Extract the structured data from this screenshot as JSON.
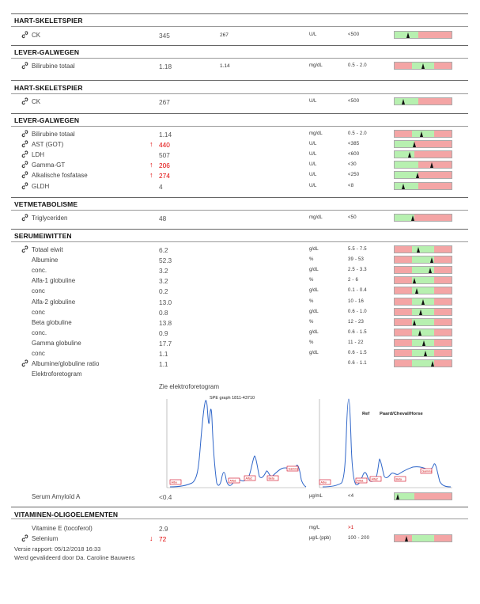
{
  "sections": [
    {
      "title": "HART-SKELETSPIER",
      "rows": [
        {
          "name": "CK",
          "link": true,
          "value": "345",
          "prev": "267",
          "unit": "U/L",
          "ref": "<500",
          "gauge": {
            "low": 0.0,
            "high": 0.42,
            "marker": 0.24
          }
        }
      ]
    },
    {
      "title": "LEVER-GALWEGEN",
      "rows": [
        {
          "name": "Bilirubine totaal",
          "link": true,
          "value": "1.18",
          "prev": "1.14",
          "unit": "mg/dL",
          "ref": "0.5  -  2.0",
          "gauge": {
            "low": 0.3,
            "high": 0.7,
            "marker": 0.5
          }
        }
      ]
    },
    {
      "title": "HART-SKELETSPIER",
      "rows": [
        {
          "name": "CK",
          "link": true,
          "value": "267",
          "unit": "U/L",
          "ref": "<500",
          "gauge": {
            "low": 0.0,
            "high": 0.42,
            "marker": 0.16
          }
        }
      ]
    },
    {
      "title": "LEVER-GALWEGEN",
      "rows": [
        {
          "name": "Bilirubine totaal",
          "link": true,
          "value": "1.14",
          "unit": "mg/dL",
          "ref": "0.5  -  2.0",
          "gauge": {
            "low": 0.3,
            "high": 0.7,
            "marker": 0.48
          }
        },
        {
          "name": "AST (GOT)",
          "link": true,
          "arrow": "up",
          "value": "440",
          "unit": "U/L",
          "ref": "<385",
          "gauge": {
            "low": 0.0,
            "high": 0.35,
            "marker": 0.35
          }
        },
        {
          "name": "LDH",
          "link": true,
          "value": "507",
          "unit": "U/L",
          "ref": "<600",
          "gauge": {
            "low": 0.0,
            "high": 0.35,
            "marker": 0.27
          }
        },
        {
          "name": "Gamma-GT",
          "link": true,
          "arrow": "up",
          "value": "206",
          "unit": "U/L",
          "ref": "<30",
          "gauge": {
            "low": 0.0,
            "high": 0.42,
            "marker": 0.66
          }
        },
        {
          "name": "Alkalische fosfatase",
          "link": true,
          "arrow": "up",
          "value": "274",
          "unit": "U/L",
          "ref": "<250",
          "gauge": {
            "low": 0.0,
            "high": 0.42,
            "marker": 0.41
          }
        },
        {
          "name": "GLDH",
          "link": true,
          "value": "4",
          "unit": "U/L",
          "ref": "<8",
          "gauge": {
            "low": 0.0,
            "high": 0.42,
            "marker": 0.16
          }
        }
      ]
    },
    {
      "title": "VETMETABOLISME",
      "rows": [
        {
          "name": "Triglyceriden",
          "link": true,
          "value": "48",
          "unit": "mg/dL",
          "ref": "<50",
          "gauge": {
            "low": 0.0,
            "high": 0.35,
            "marker": 0.33
          }
        }
      ]
    },
    {
      "title": "SERUMEIWITTEN",
      "rows": [
        {
          "name": "Totaal eiwit",
          "link": true,
          "value": "6.2",
          "unit": "g/dL",
          "ref": "5.5  -  7.5",
          "gauge": {
            "low": 0.3,
            "high": 0.7,
            "marker": 0.42
          }
        },
        {
          "name": "Albumine",
          "value": "52.3",
          "unit": "%",
          "ref": "39  -  53",
          "gauge": {
            "low": 0.3,
            "high": 0.7,
            "marker": 0.66
          }
        },
        {
          "name": "conc.",
          "value": "3.2",
          "unit": "g/dL",
          "ref": "2.5  -  3.3",
          "gauge": {
            "low": 0.3,
            "high": 0.7,
            "marker": 0.63
          }
        },
        {
          "name": "Alfa-1 globuline",
          "value": "3.2",
          "unit": "%",
          "ref": "2  -  6",
          "gauge": {
            "low": 0.3,
            "high": 0.7,
            "marker": 0.36
          }
        },
        {
          "name": "conc",
          "value": "0.2",
          "unit": "g/dL",
          "ref": "0.1  -  0.4",
          "gauge": {
            "low": 0.3,
            "high": 0.7,
            "marker": 0.39
          }
        },
        {
          "name": "Alfa-2 globuline",
          "value": "13.0",
          "unit": "%",
          "ref": "10  -  16",
          "gauge": {
            "low": 0.3,
            "high": 0.7,
            "marker": 0.5
          }
        },
        {
          "name": "conc",
          "value": "0.8",
          "unit": "g/dL",
          "ref": "0.6  -  1.0",
          "gauge": {
            "low": 0.3,
            "high": 0.7,
            "marker": 0.47
          }
        },
        {
          "name": "Beta globuline",
          "value": "13.8",
          "unit": "%",
          "ref": "12  -  23",
          "gauge": {
            "low": 0.3,
            "high": 0.7,
            "marker": 0.36
          }
        },
        {
          "name": "conc.",
          "value": "0.9",
          "unit": "g/dL",
          "ref": "0.6  -  1.5",
          "gauge": {
            "low": 0.3,
            "high": 0.7,
            "marker": 0.45
          }
        },
        {
          "name": "Gamma globuline",
          "value": "17.7",
          "unit": "%",
          "ref": "11  -  22",
          "gauge": {
            "low": 0.3,
            "high": 0.7,
            "marker": 0.52
          }
        },
        {
          "name": "conc",
          "value": "1.1",
          "unit": "g/dL",
          "ref": "0.6  -  1.5",
          "gauge": {
            "low": 0.3,
            "high": 0.7,
            "marker": 0.55
          }
        },
        {
          "name": "Albumine/globuline ratio",
          "link": true,
          "value": "1.1",
          "ref": "0.6  -  1.1",
          "gauge": {
            "low": 0.3,
            "high": 0.7,
            "marker": 0.68
          }
        },
        {
          "name": "Elektroforetogram"
        }
      ]
    }
  ],
  "electro": {
    "caption": "Zie elektroforetogram",
    "graph_title": "SPE graph 1811-43710",
    "ref_label": "Ref",
    "ref_species": "Paard/Cheval/Horse",
    "band_labels_left": [
      "Albu",
      "Alfa1",
      "Alfa2",
      "Beta",
      "Gamma"
    ],
    "band_labels_right": [
      "Albu",
      "Alfa1",
      "Alfa2",
      "Beta",
      "Gamma"
    ]
  },
  "amyloid": {
    "name": "Serum Amyloïd A",
    "value": "<0.4",
    "unit": "µg/mL",
    "ref": "<4",
    "gauge": {
      "low": 0.0,
      "high": 0.35,
      "marker": 0.06
    }
  },
  "vitamins": {
    "title": "VITAMINEN-OLIGOELEMENTEN",
    "rows": [
      {
        "name": "Vitamine E (tocoferol)",
        "value": "2.9",
        "unit": "mg/L",
        "ref": ">1"
      },
      {
        "name": "Selenium",
        "link": true,
        "arrow": "down",
        "value": "72",
        "unit": "µg/L (ppb)",
        "ref": "100  -  200",
        "gauge": {
          "low": 0.3,
          "high": 0.7,
          "marker": 0.22
        }
      }
    ]
  },
  "footer": {
    "version": "Versie rapport: 05/12/2018 16:33",
    "validated": "Werd gevalideerd door Da. Caroline Bauwens"
  },
  "colors": {
    "range_green": "#b7f0b0",
    "range_red": "#f4a5a5",
    "alert": "#e00000",
    "curve": "#2f66c9",
    "band_box": "#d0021b"
  }
}
